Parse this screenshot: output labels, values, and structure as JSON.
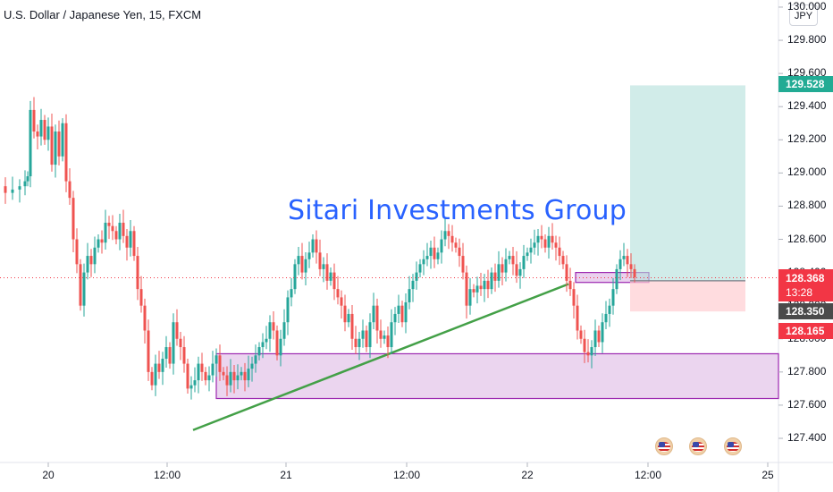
{
  "header": {
    "title": "U.S. Dollar / Japanese Yen, 15, FXCM",
    "currency": "JPY",
    "watermark": "Sitari Investments Group"
  },
  "price_axis": {
    "ticks": [
      "130.000",
      "129.800",
      "129.600",
      "129.400",
      "129.200",
      "129.000",
      "128.800",
      "128.600",
      "128.400",
      "128.200",
      "128.000",
      "127.800",
      "127.600",
      "127.400"
    ]
  },
  "time_axis": {
    "ticks": [
      "20",
      "12:00",
      "21",
      "12:00",
      "22",
      "12:00",
      "25"
    ]
  },
  "price_tags": {
    "target": "129.528",
    "last": "128.368",
    "countdown": "13:28",
    "entry": "128.350",
    "stop": "128.165"
  },
  "colors": {
    "up": "#26a69a",
    "down": "#ef5350",
    "target_zone": "#b2dfdb",
    "stop_zone": "#ffcdd2",
    "demand_zone": "#9c27b0",
    "trendline": "#43a047",
    "watermark": "#2962ff",
    "last_price": "#f23645",
    "entry_tag": "#4a4a4a"
  },
  "icons": [
    "us-flag-icon",
    "us-flag-icon",
    "us-flag-icon"
  ],
  "chart_data": {
    "type": "candlestick",
    "title": "U.S. Dollar / Japanese Yen, 15, FXCM",
    "ylim": [
      127.3,
      130.0
    ],
    "path_points": [
      [
        0,
        128.92
      ],
      [
        6,
        128.88
      ],
      [
        14,
        128.9
      ],
      [
        22,
        128.92
      ],
      [
        28,
        128.95
      ],
      [
        31,
        128.98
      ],
      [
        34,
        129.38
      ],
      [
        38,
        129.25
      ],
      [
        42,
        129.22
      ],
      [
        46,
        129.32
      ],
      [
        50,
        129.2
      ],
      [
        54,
        129.28
      ],
      [
        58,
        129.05
      ],
      [
        62,
        129.25
      ],
      [
        66,
        129.1
      ],
      [
        70,
        129.3
      ],
      [
        74,
        128.95
      ],
      [
        78,
        128.85
      ],
      [
        82,
        128.6
      ],
      [
        86,
        128.45
      ],
      [
        90,
        128.2
      ],
      [
        94,
        128.4
      ],
      [
        98,
        128.5
      ],
      [
        102,
        128.45
      ],
      [
        106,
        128.55
      ],
      [
        110,
        128.6
      ],
      [
        114,
        128.58
      ],
      [
        118,
        128.7
      ],
      [
        122,
        128.68
      ],
      [
        126,
        128.65
      ],
      [
        130,
        128.6
      ],
      [
        134,
        128.7
      ],
      [
        138,
        128.62
      ],
      [
        142,
        128.55
      ],
      [
        146,
        128.65
      ],
      [
        150,
        128.5
      ],
      [
        154,
        128.3
      ],
      [
        158,
        128.2
      ],
      [
        162,
        128.05
      ],
      [
        166,
        127.8
      ],
      [
        170,
        127.72
      ],
      [
        174,
        127.85
      ],
      [
        178,
        127.8
      ],
      [
        182,
        127.88
      ],
      [
        186,
        127.95
      ],
      [
        190,
        127.85
      ],
      [
        194,
        128.1
      ],
      [
        198,
        128.0
      ],
      [
        202,
        127.95
      ],
      [
        206,
        127.85
      ],
      [
        210,
        127.7
      ],
      [
        214,
        127.72
      ],
      [
        218,
        127.75
      ],
      [
        222,
        127.85
      ],
      [
        226,
        127.8
      ],
      [
        230,
        127.75
      ],
      [
        234,
        127.78
      ],
      [
        238,
        127.85
      ],
      [
        242,
        127.9
      ],
      [
        246,
        127.8
      ],
      [
        250,
        127.78
      ],
      [
        254,
        127.72
      ],
      [
        258,
        127.8
      ],
      [
        262,
        127.75
      ],
      [
        266,
        127.78
      ],
      [
        270,
        127.8
      ],
      [
        274,
        127.75
      ],
      [
        278,
        127.82
      ],
      [
        282,
        127.85
      ],
      [
        286,
        127.9
      ],
      [
        290,
        127.95
      ],
      [
        294,
        127.98
      ],
      [
        298,
        128.0
      ],
      [
        302,
        128.1
      ],
      [
        306,
        128.05
      ],
      [
        310,
        127.9
      ],
      [
        314,
        128.0
      ],
      [
        318,
        128.1
      ],
      [
        322,
        128.25
      ],
      [
        326,
        128.3
      ],
      [
        330,
        128.45
      ],
      [
        334,
        128.5
      ],
      [
        338,
        128.4
      ],
      [
        342,
        128.48
      ],
      [
        346,
        128.52
      ],
      [
        350,
        128.6
      ],
      [
        354,
        128.52
      ],
      [
        358,
        128.42
      ],
      [
        362,
        128.45
      ],
      [
        366,
        128.35
      ],
      [
        370,
        128.4
      ],
      [
        374,
        128.3
      ],
      [
        378,
        128.25
      ],
      [
        382,
        128.2
      ],
      [
        386,
        128.1
      ],
      [
        390,
        128.15
      ],
      [
        394,
        128.0
      ],
      [
        398,
        127.95
      ],
      [
        402,
        128.0
      ],
      [
        406,
        128.05
      ],
      [
        410,
        127.95
      ],
      [
        414,
        128.1
      ],
      [
        418,
        128.2
      ],
      [
        422,
        128.05
      ],
      [
        426,
        128.0
      ],
      [
        430,
        128.02
      ],
      [
        434,
        127.95
      ],
      [
        438,
        128.1
      ],
      [
        442,
        128.15
      ],
      [
        446,
        128.2
      ],
      [
        450,
        128.1
      ],
      [
        454,
        128.22
      ],
      [
        458,
        128.3
      ],
      [
        462,
        128.35
      ],
      [
        466,
        128.4
      ],
      [
        470,
        128.45
      ],
      [
        474,
        128.48
      ],
      [
        478,
        128.5
      ],
      [
        482,
        128.55
      ],
      [
        486,
        128.48
      ],
      [
        490,
        128.52
      ],
      [
        494,
        128.6
      ],
      [
        498,
        128.65
      ],
      [
        502,
        128.62
      ],
      [
        506,
        128.58
      ],
      [
        510,
        128.55
      ],
      [
        514,
        128.5
      ],
      [
        518,
        128.4
      ],
      [
        522,
        128.2
      ],
      [
        526,
        128.3
      ],
      [
        530,
        128.28
      ],
      [
        534,
        128.32
      ],
      [
        538,
        128.3
      ],
      [
        542,
        128.35
      ],
      [
        546,
        128.3
      ],
      [
        550,
        128.4
      ],
      [
        554,
        128.35
      ],
      [
        558,
        128.45
      ],
      [
        562,
        128.4
      ],
      [
        566,
        128.48
      ],
      [
        570,
        128.5
      ],
      [
        574,
        128.45
      ],
      [
        578,
        128.38
      ],
      [
        582,
        128.42
      ],
      [
        586,
        128.5
      ],
      [
        590,
        128.52
      ],
      [
        594,
        128.55
      ],
      [
        598,
        128.58
      ],
      [
        602,
        128.62
      ],
      [
        606,
        128.6
      ],
      [
        610,
        128.55
      ],
      [
        614,
        128.62
      ],
      [
        618,
        128.58
      ],
      [
        622,
        128.55
      ],
      [
        626,
        128.5
      ],
      [
        630,
        128.45
      ],
      [
        634,
        128.35
      ],
      [
        638,
        128.3
      ],
      [
        642,
        128.2
      ],
      [
        646,
        128.05
      ],
      [
        650,
        128.0
      ],
      [
        654,
        127.92
      ],
      [
        658,
        127.9
      ],
      [
        662,
        127.95
      ],
      [
        666,
        128.05
      ],
      [
        670,
        127.98
      ],
      [
        674,
        128.1
      ],
      [
        678,
        128.15
      ],
      [
        682,
        128.2
      ],
      [
        686,
        128.3
      ],
      [
        690,
        128.42
      ],
      [
        694,
        128.48
      ],
      [
        698,
        128.5
      ],
      [
        702,
        128.45
      ],
      [
        706,
        128.42
      ],
      [
        710,
        128.37
      ]
    ],
    "last_price": 128.368,
    "position": {
      "entry": 128.35,
      "target": 129.528,
      "stop": 128.165
    },
    "demand_zone": [
      127.64,
      127.91
    ],
    "small_zone": [
      128.34,
      128.4
    ],
    "trendline": [
      [
        216,
        127.45
      ],
      [
        636,
        128.33
      ]
    ]
  }
}
